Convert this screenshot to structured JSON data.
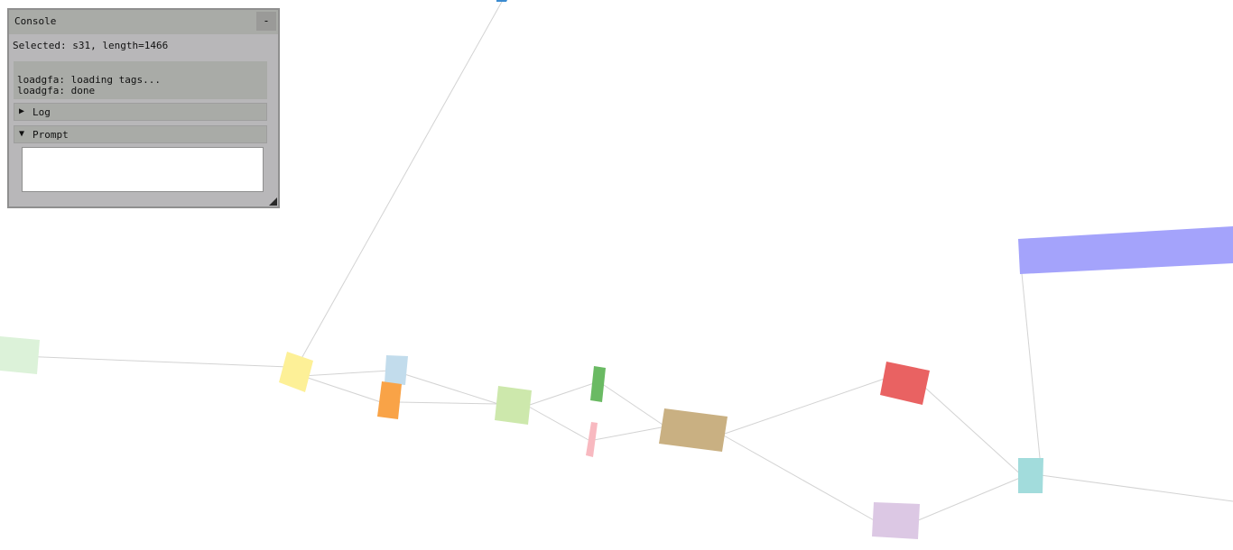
{
  "console": {
    "title": "Console",
    "minimize_label": "-",
    "status": "Selected: s31, length=1466",
    "output_lines": [
      "loadgfa: loading tags...",
      "loadgfa: done"
    ],
    "log_arrow": "▶",
    "log_label": "Log",
    "prompt_arrow": "▼",
    "prompt_label": "Prompt",
    "prompt_value": ""
  },
  "graph": {
    "edge_color": "#d3d3d3",
    "nodes": [
      {
        "id": "node-light-green-left",
        "color": "#dcf2d9"
      },
      {
        "id": "node-top-blue",
        "color": "#3b8bd0"
      },
      {
        "id": "node-yellow",
        "color": "#fdf097"
      },
      {
        "id": "node-light-blue",
        "color": "#c2dcec"
      },
      {
        "id": "node-orange",
        "color": "#f9a347"
      },
      {
        "id": "node-lime",
        "color": "#cde8ac"
      },
      {
        "id": "node-green",
        "color": "#6aba63"
      },
      {
        "id": "node-pink",
        "color": "#f8b9c0"
      },
      {
        "id": "node-tan",
        "color": "#c9b082"
      },
      {
        "id": "node-red",
        "color": "#e96262"
      },
      {
        "id": "node-lavender",
        "color": "#dcc8e4"
      },
      {
        "id": "node-cyan",
        "color": "#a2dcdc"
      },
      {
        "id": "node-periwinkle",
        "color": "#a4a3fb"
      }
    ]
  }
}
